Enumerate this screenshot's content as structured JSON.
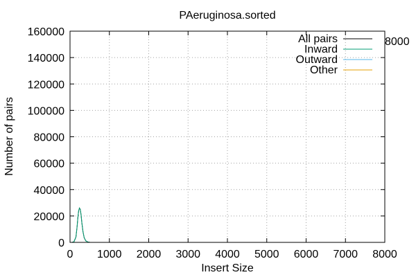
{
  "chart_data": {
    "type": "line",
    "title": "PAeruginosa.sorted",
    "xlabel": "Insert Size",
    "ylabel": "Number of pairs",
    "xlim": [
      0,
      8000
    ],
    "ylim": [
      0,
      160000
    ],
    "x_ticks": [
      0,
      1000,
      2000,
      3000,
      4000,
      5000,
      6000,
      7000,
      8000
    ],
    "y_ticks": [
      0,
      20000,
      40000,
      60000,
      80000,
      100000,
      120000,
      140000,
      160000
    ],
    "grid": true,
    "legend_position": "top-right",
    "extra_label": "8000",
    "series": [
      {
        "name": "All pairs",
        "color": "#000000",
        "x": [
          0,
          50,
          100,
          150,
          180,
          200,
          220,
          240,
          260,
          280,
          300,
          330,
          360,
          400,
          450,
          500,
          550,
          600,
          8000
        ],
        "y": [
          0,
          0,
          500,
          4000,
          12000,
          19000,
          24000,
          26000,
          25000,
          21000,
          15000,
          8000,
          3500,
          1200,
          300,
          80,
          20,
          0,
          0
        ]
      },
      {
        "name": "Inward",
        "color": "#009e73",
        "x": [
          0,
          50,
          100,
          150,
          180,
          200,
          220,
          240,
          260,
          280,
          300,
          330,
          360,
          400,
          450,
          500,
          550,
          600,
          8000
        ],
        "y": [
          0,
          0,
          500,
          4000,
          12000,
          19000,
          24000,
          26000,
          25000,
          21000,
          15000,
          8000,
          3500,
          1200,
          300,
          80,
          20,
          0,
          0
        ]
      },
      {
        "name": "Outward",
        "color": "#56b4e9",
        "x": [
          0,
          8000
        ],
        "y": [
          0,
          0
        ]
      },
      {
        "name": "Other",
        "color": "#e69f00",
        "x": [
          0,
          8000
        ],
        "y": [
          0,
          0
        ]
      }
    ]
  }
}
